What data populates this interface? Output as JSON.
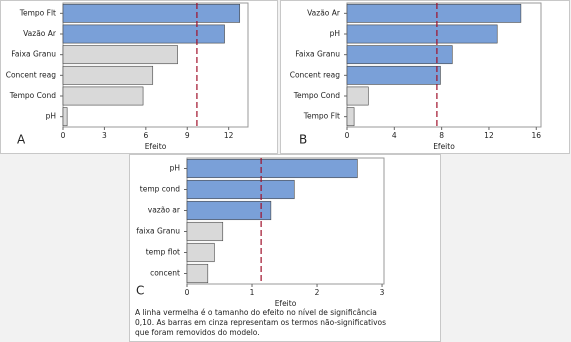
{
  "chart_data": [
    {
      "type": "bar",
      "orientation": "horizontal",
      "panel_label": "A",
      "xlabel": "Efeito",
      "categories": [
        "Tempo Flt",
        "Vazão Ar",
        "Faixa Granu",
        "Concent reag",
        "Tempo Cond",
        "pH"
      ],
      "values": [
        12.8,
        11.7,
        8.3,
        6.5,
        5.8,
        0.3
      ],
      "colors": [
        "#7aa0d8",
        "#7aa0d8",
        "#d9d9d9",
        "#d9d9d9",
        "#d9d9d9",
        "#d9d9d9"
      ],
      "xlim": [
        0,
        13.4
      ],
      "xticks": [
        0,
        3,
        6,
        9,
        12
      ],
      "reference_line": 9.7,
      "reference_color": "#a0102a"
    },
    {
      "type": "bar",
      "orientation": "horizontal",
      "panel_label": "B",
      "xlabel": "Efeito",
      "categories": [
        "Vazão Ar",
        "pH",
        "Faixa Granu",
        "Concent reag",
        "Tempo Cond",
        "Tempo Flt"
      ],
      "values": [
        14.7,
        12.7,
        8.9,
        7.9,
        1.8,
        0.6
      ],
      "colors": [
        "#7aa0d8",
        "#7aa0d8",
        "#7aa0d8",
        "#7aa0d8",
        "#d9d9d9",
        "#d9d9d9"
      ],
      "xlim": [
        0,
        16.4
      ],
      "xticks": [
        0,
        4,
        8,
        12,
        16
      ],
      "reference_line": 7.6,
      "reference_color": "#a0102a"
    },
    {
      "type": "bar",
      "orientation": "horizontal",
      "panel_label": "C",
      "xlabel": "Efeito",
      "categories": [
        "pH",
        "temp cond",
        "vazão ar",
        "faixa Granu",
        "temp flot",
        "concent"
      ],
      "values": [
        2.62,
        1.65,
        1.29,
        0.55,
        0.42,
        0.32
      ],
      "colors": [
        "#7aa0d8",
        "#7aa0d8",
        "#7aa0d8",
        "#d9d9d9",
        "#d9d9d9",
        "#d9d9d9"
      ],
      "xlim": [
        0,
        3.03
      ],
      "xticks": [
        0,
        1,
        2,
        3
      ],
      "reference_line": 1.14,
      "reference_color": "#a0102a"
    }
  ],
  "caption": [
    "A linha vermelha é o tamanho do efeito no nível de significância",
    "0,10. As barras em cinza representam os termos não-significativos",
    "que foram removidos do modelo."
  ]
}
